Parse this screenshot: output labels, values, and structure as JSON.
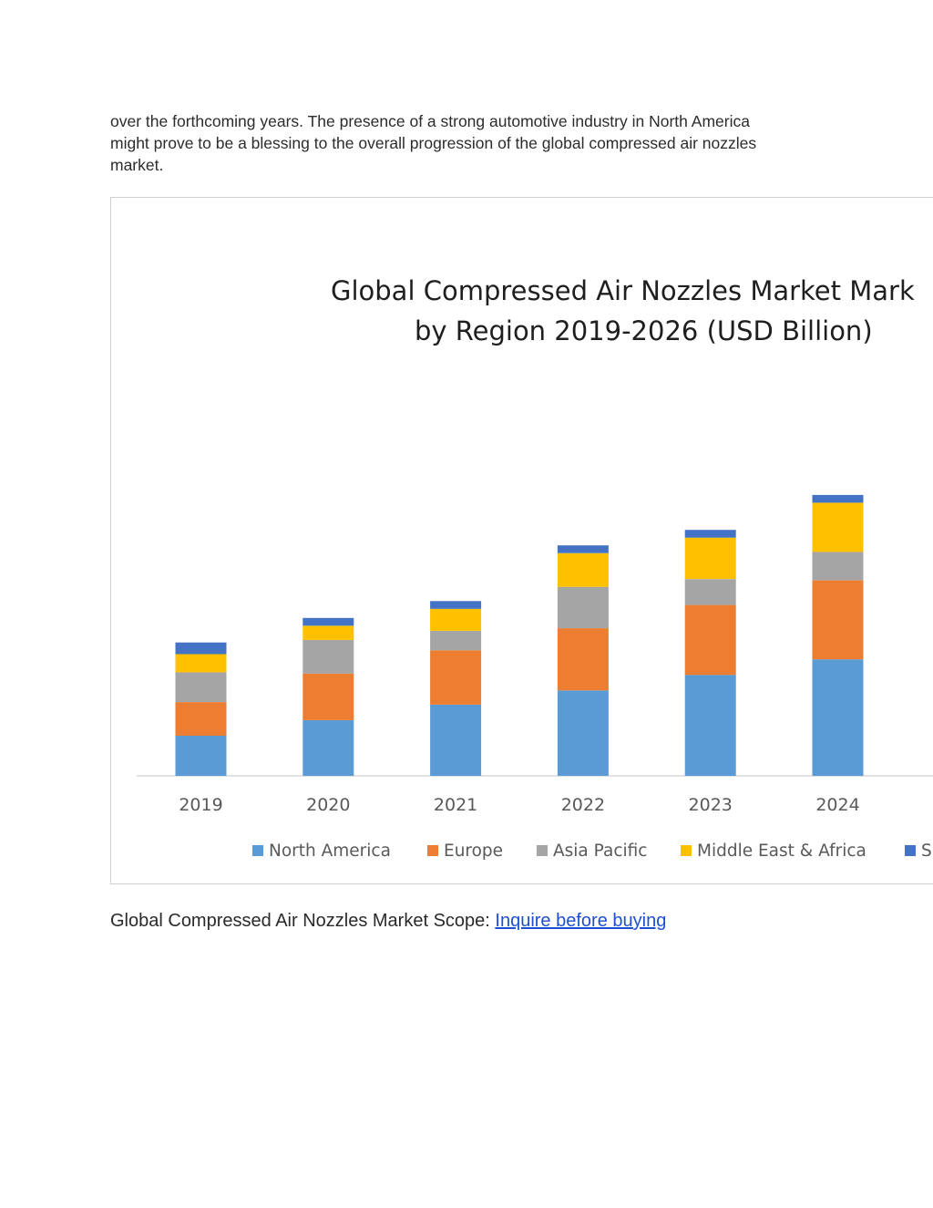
{
  "intro": {
    "lines": [
      "over the forthcoming years. The presence of a strong automotive industry in North America",
      "might prove to be a blessing to the overall progression of the global compressed air nozzles",
      "market."
    ]
  },
  "chart_data": {
    "type": "bar",
    "stacked": true,
    "title_lines": [
      "Global Compressed Air Nozzles Market Mark",
      "by Region 2019-2026 (USD Billion)"
    ],
    "categories": [
      "2019",
      "2020",
      "2021",
      "2022",
      "2023",
      "2024"
    ],
    "series": [
      {
        "name": "North America",
        "color": "#5b9bd5",
        "values": [
          15.5,
          21.5,
          27.5,
          33.0,
          39.0,
          45.0
        ]
      },
      {
        "name": "Europe",
        "color": "#ed7d31",
        "values": [
          13.0,
          18.0,
          21.0,
          24.0,
          27.0,
          30.5
        ]
      },
      {
        "name": "Asia Pacific",
        "color": "#a5a5a5",
        "values": [
          11.5,
          13.0,
          7.5,
          16.0,
          10.0,
          11.0
        ]
      },
      {
        "name": "Middle East & Africa",
        "color": "#ffc000",
        "values": [
          7.0,
          5.5,
          8.5,
          13.0,
          16.0,
          19.0
        ]
      },
      {
        "name": "S",
        "color": "#4472c4",
        "values": [
          4.5,
          3.0,
          3.0,
          3.0,
          3.0,
          3.0
        ]
      }
    ],
    "ylim": [
      0,
      115
    ],
    "grid": false,
    "legend_position": "bottom"
  },
  "footer": {
    "scope_label": "Global Compressed Air Nozzles Market Scope: ",
    "link_text": "Inquire before buying"
  }
}
